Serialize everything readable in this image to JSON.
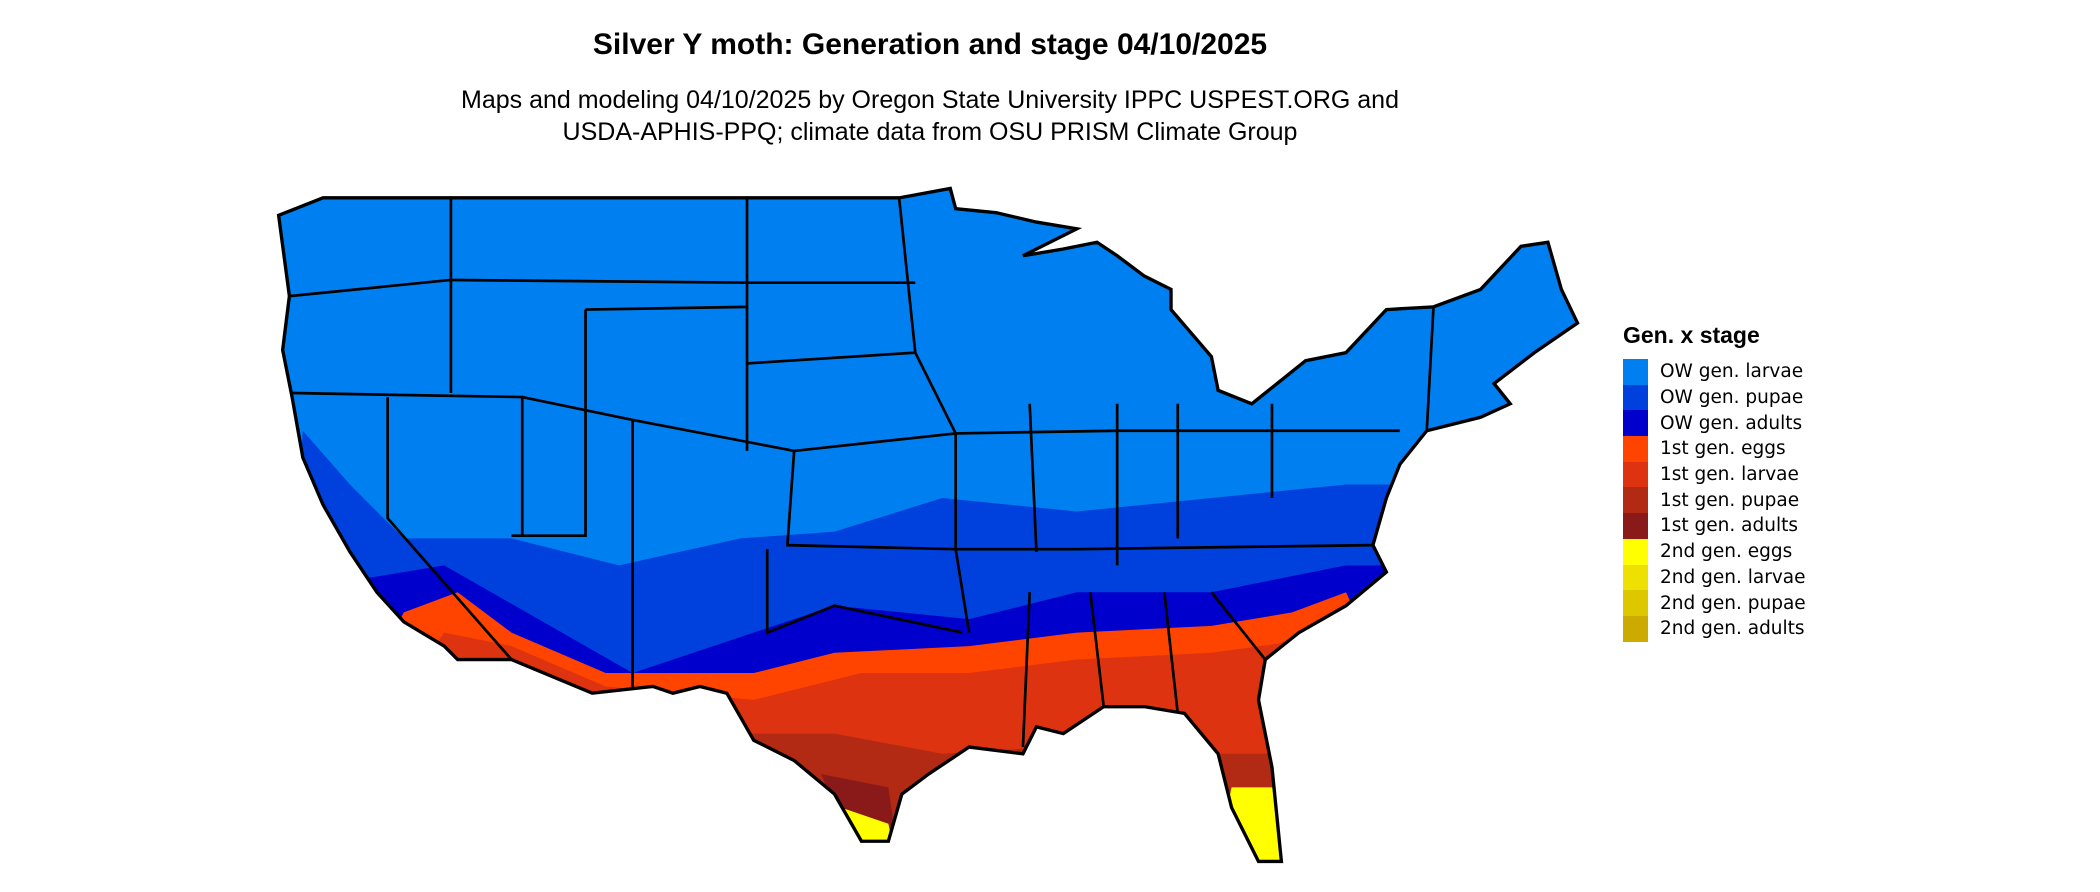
{
  "title": "Silver Y moth: Generation and stage 04/10/2025",
  "subtitle_line1": "Maps and modeling 04/10/2025 by Oregon State University IPPC USPEST.ORG and",
  "subtitle_line2": "USDA-APHIS-PPQ; climate data from OSU PRISM Climate Group",
  "legend": {
    "title": "Gen. x stage",
    "items": [
      {
        "label": "OW gen. larvae",
        "color": "#0080f0"
      },
      {
        "label": "OW gen. pupae",
        "color": "#0040dd"
      },
      {
        "label": "OW gen. adults",
        "color": "#0000cc"
      },
      {
        "label": "1st gen. eggs",
        "color": "#ff4400"
      },
      {
        "label": "1st gen. larvae",
        "color": "#dd3311"
      },
      {
        "label": "1st gen. pupae",
        "color": "#b22a14"
      },
      {
        "label": "1st gen. adults",
        "color": "#8a1a1a"
      },
      {
        "label": "2nd gen. eggs",
        "color": "#ffff00"
      },
      {
        "label": "2nd gen. larvae",
        "color": "#eee000"
      },
      {
        "label": "2nd gen. pupae",
        "color": "#ddc800"
      },
      {
        "label": "2nd gen. adults",
        "color": "#ccaa00"
      }
    ]
  }
}
